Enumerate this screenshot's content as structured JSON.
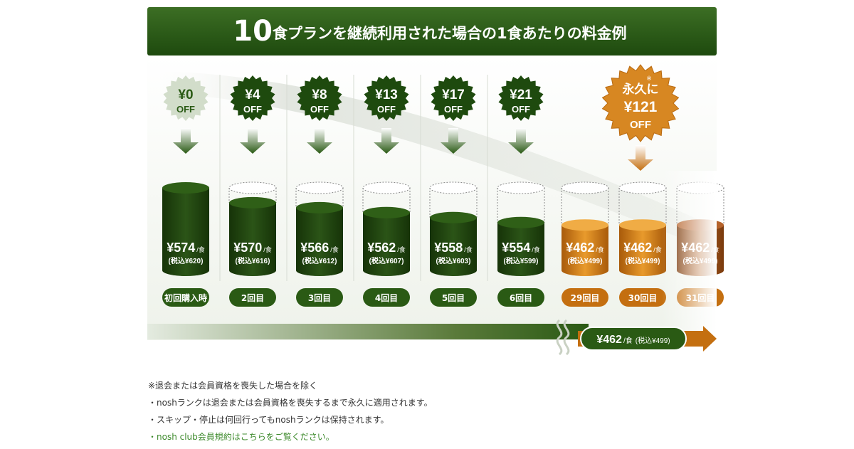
{
  "title": "10食プランを継続利用された場合の1食あたりの料金例",
  "title_number": "10",
  "title_rest": "食プランを継続利用された場合の1食あたりの料金例",
  "colors": {
    "green": "#2a5a14",
    "dark_green": "#17370b",
    "light_green": "#cfdcc6",
    "orange": "#c46f10",
    "light_orange": "#f3b04a"
  },
  "chart_data": {
    "type": "bar",
    "categories": [
      "初回購入時",
      "2回目",
      "3回目",
      "4回目",
      "5回目",
      "6回目",
      "29回目",
      "30回目",
      "31回目"
    ],
    "series": [
      {
        "values": [
          574,
          570,
          566,
          562,
          558,
          554,
          462,
          462,
          462
        ]
      }
    ],
    "price_labels": [
      "¥574",
      "¥570",
      "¥566",
      "¥562",
      "¥558",
      "¥554",
      "¥462",
      "¥462",
      "¥462"
    ],
    "tax_labels": [
      "(税込¥620)",
      "(税込¥616)",
      "(税込¥612)",
      "(税込¥607)",
      "(税込¥603)",
      "(税込¥599)",
      "(税込¥499)",
      "(税込¥499)",
      "(税込¥499)"
    ],
    "per_meal_unit": "/食",
    "discount_badges": [
      {
        "amount": "¥0",
        "off": "OFF",
        "fill_level": 1.0
      },
      {
        "amount": "¥4",
        "off": "OFF",
        "fill_level": 0.82
      },
      {
        "amount": "¥8",
        "off": "OFF",
        "fill_level": 0.76
      },
      {
        "amount": "¥13",
        "off": "OFF",
        "fill_level": 0.7
      },
      {
        "amount": "¥17",
        "off": "OFF",
        "fill_level": 0.64
      },
      {
        "amount": "¥21",
        "off": "OFF",
        "fill_level": 0.58
      }
    ],
    "permanent_badge": {
      "prefix": "永久に",
      "note_mark": "※",
      "amount": "¥121",
      "off": "OFF",
      "fill_level": 0.55
    },
    "continuation": {
      "price": "¥462",
      "unit": "/食",
      "tax": "(税込¥499)"
    }
  },
  "notes": [
    "※退会または会員資格を喪失した場合を除く",
    "・noshランクは退会または会員資格を喪失するまで永久に適用されます。",
    "・スキップ・停止は何回行ってもnoshランクは保持されます。"
  ],
  "notes_link": "・nosh club会員規約はこちらをご覧ください。"
}
